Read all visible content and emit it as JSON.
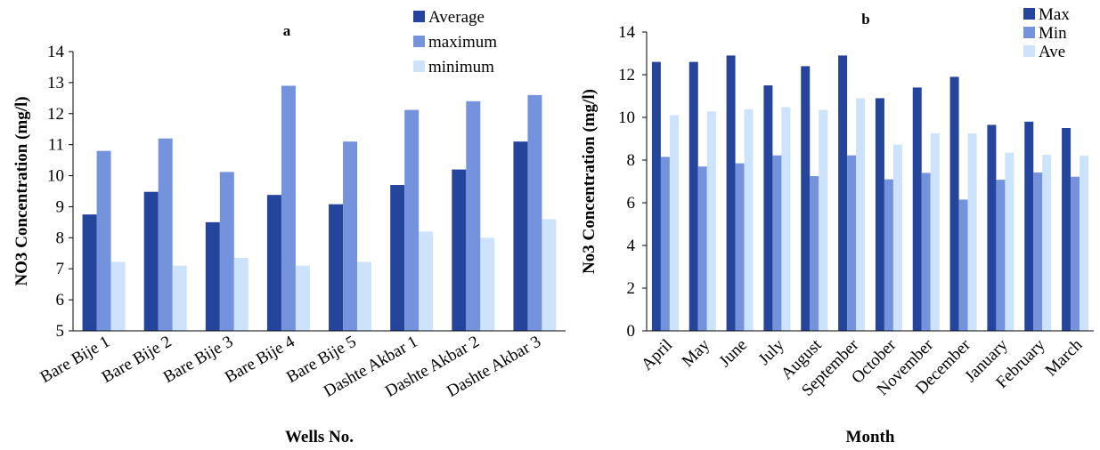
{
  "chart_data": [
    {
      "type": "bar",
      "title": "a",
      "xlabel": "Wells No.",
      "ylabel": "NO3 Concentration  (mg/l)",
      "ylim": [
        5,
        14
      ],
      "yticks": [
        "5",
        "6",
        "7",
        "8",
        "9",
        "10",
        "11",
        "12",
        "13",
        "14"
      ],
      "categories": [
        "Bare Bije 1",
        "Bare Bije 2",
        "Bare Bije 3",
        "Bare Bije 4",
        "Bare Bije 5",
        "Dashte Akbar 1",
        "Dashte Akbar 2",
        "Dashte Akbar 3"
      ],
      "series": [
        {
          "name": "Average",
          "color": "#25449c",
          "values": [
            8.75,
            9.48,
            8.5,
            9.38,
            9.08,
            9.7,
            10.2,
            11.1
          ]
        },
        {
          "name": "maximum",
          "color": "#7593dc",
          "values": [
            10.8,
            11.2,
            10.12,
            12.9,
            11.1,
            12.12,
            12.4,
            12.6
          ]
        },
        {
          "name": "minimum",
          "color": "#cde2fb",
          "values": [
            7.22,
            7.1,
            7.35,
            7.1,
            7.22,
            8.2,
            8.0,
            8.6
          ]
        }
      ],
      "grid": false,
      "legend": "top-right"
    },
    {
      "type": "bar",
      "title": "b",
      "xlabel": "Month",
      "ylabel": "No3 Concentration  (mg/l)",
      "ylim": [
        0,
        14
      ],
      "yticks": [
        "0",
        "2",
        "4",
        "6",
        "8",
        "10",
        "12",
        "14"
      ],
      "categories": [
        "April",
        "May",
        "June",
        "July",
        "August",
        "September",
        "October",
        "November",
        "December",
        "January",
        "February",
        "March"
      ],
      "series": [
        {
          "name": "Max",
          "color": "#25449c",
          "values": [
            12.6,
            12.6,
            12.9,
            11.5,
            12.4,
            12.9,
            10.9,
            11.4,
            11.9,
            9.65,
            9.8,
            9.5
          ]
        },
        {
          "name": "Min",
          "color": "#7593dc",
          "values": [
            8.15,
            7.7,
            7.85,
            8.22,
            7.25,
            8.22,
            7.1,
            7.4,
            6.15,
            7.08,
            7.42,
            7.22
          ]
        },
        {
          "name": "Ave",
          "color": "#cde2fb",
          "values": [
            10.1,
            10.28,
            10.38,
            10.48,
            10.35,
            10.9,
            8.72,
            9.25,
            9.25,
            8.35,
            8.25,
            8.2
          ]
        }
      ],
      "grid": false,
      "legend": "top-right"
    }
  ]
}
